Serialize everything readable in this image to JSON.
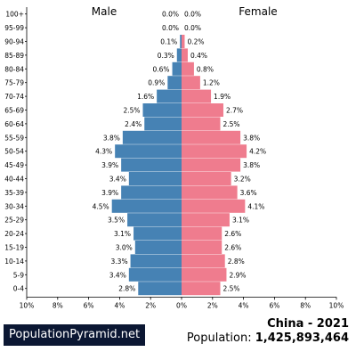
{
  "chart_data": {
    "type": "bar",
    "orientation": "horizontal-mirrored",
    "left_label": "Male",
    "right_label": "Female",
    "categories": [
      "100+",
      "95-99",
      "90-94",
      "85-89",
      "80-84",
      "75-79",
      "70-74",
      "65-69",
      "60-64",
      "55-59",
      "50-54",
      "45-49",
      "40-44",
      "35-39",
      "30-34",
      "25-29",
      "20-24",
      "15-19",
      "10-14",
      "5-9",
      "0-4"
    ],
    "series": [
      {
        "name": "Male",
        "color": "#4682b4",
        "values": [
          0.0,
          0.0,
          0.1,
          0.3,
          0.6,
          0.9,
          1.6,
          2.5,
          2.4,
          3.8,
          4.3,
          3.9,
          3.4,
          3.9,
          4.5,
          3.5,
          3.1,
          3.0,
          3.3,
          3.4,
          2.8
        ],
        "labels": [
          "0.0%",
          "0.0%",
          "0.1%",
          "0.3%",
          "0.6%",
          "0.9%",
          "1.6%",
          "2.5%",
          "2.4%",
          "3.8%",
          "4.3%",
          "3.9%",
          "3.4%",
          "3.9%",
          "4.5%",
          "3.5%",
          "3.1%",
          "3.0%",
          "3.3%",
          "3.4%",
          "2.8%"
        ]
      },
      {
        "name": "Female",
        "color": "#ef7c8e",
        "values": [
          0.0,
          0.0,
          0.2,
          0.4,
          0.8,
          1.2,
          1.9,
          2.7,
          2.5,
          3.8,
          4.2,
          3.8,
          3.2,
          3.6,
          4.1,
          3.1,
          2.6,
          2.6,
          2.8,
          2.9,
          2.5
        ],
        "labels": [
          "0.0%",
          "0.0%",
          "0.2%",
          "0.4%",
          "0.8%",
          "1.2%",
          "1.9%",
          "2.7%",
          "2.5%",
          "3.8%",
          "4.2%",
          "3.8%",
          "3.2%",
          "3.6%",
          "4.1%",
          "3.1%",
          "2.6%",
          "2.6%",
          "2.8%",
          "2.9%",
          "2.5%"
        ]
      }
    ],
    "xlim": [
      -10,
      10
    ],
    "xticks": [
      -10,
      -8,
      -6,
      -4,
      -2,
      0,
      2,
      4,
      6,
      8,
      10
    ],
    "xtick_labels": [
      "10%",
      "8%",
      "6%",
      "4%",
      "2%",
      "0%",
      "2%",
      "4%",
      "6%",
      "8%",
      "10%"
    ],
    "grid": false
  },
  "footer": {
    "brand": "PopulationPyramid.net",
    "title": "China - 2021",
    "population_label": "Population: ",
    "population_value": "1,425,893,464"
  }
}
